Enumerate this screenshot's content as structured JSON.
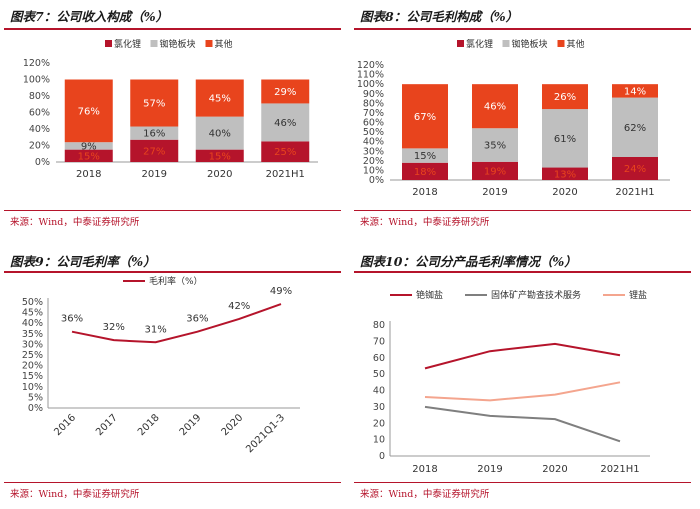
{
  "colors": {
    "accent": "#b5142b",
    "gray": "#bfbfbf",
    "orange": "#e8441d",
    "darkgray": "#7f7f7f",
    "salmon": "#f4a58e"
  },
  "chart_data": [
    {
      "type": "bar",
      "stacked": true,
      "title": "图表7：公司收入构成（%）",
      "categories": [
        "2018",
        "2019",
        "2020",
        "2021H1"
      ],
      "series": [
        {
          "name": "氯化锂",
          "values": [
            15,
            27,
            15,
            25
          ],
          "labels": [
            "15%",
            "27%",
            "15%",
            "25%"
          ]
        },
        {
          "name": "铷铯板块",
          "values": [
            9,
            16,
            40,
            46
          ],
          "labels": [
            "9%",
            "16%",
            "40%",
            "46%"
          ]
        },
        {
          "name": "其他",
          "values": [
            76,
            57,
            45,
            29
          ],
          "labels": [
            "76%",
            "57%",
            "45%",
            "29%"
          ]
        }
      ],
      "yticks": [
        "0%",
        "20%",
        "40%",
        "60%",
        "80%",
        "100%",
        "120%"
      ],
      "ylim": [
        0,
        120
      ],
      "source": "来源：Wind，中泰证券研究所"
    },
    {
      "type": "bar",
      "stacked": true,
      "title": "图表8：公司毛利构成（%）",
      "categories": [
        "2018",
        "2019",
        "2020",
        "2021H1"
      ],
      "series": [
        {
          "name": "氯化锂",
          "values": [
            18,
            19,
            13,
            24
          ],
          "labels": [
            "18%",
            "19%",
            "13%",
            "24%"
          ]
        },
        {
          "name": "铷铯板块",
          "values": [
            15,
            35,
            61,
            62
          ],
          "labels": [
            "15%",
            "35%",
            "61%",
            "62%"
          ]
        },
        {
          "name": "其他",
          "values": [
            67,
            46,
            26,
            14
          ],
          "labels": [
            "67%",
            "46%",
            "26%",
            "14%"
          ]
        }
      ],
      "yticks": [
        "0%",
        "10%",
        "20%",
        "30%",
        "40%",
        "50%",
        "60%",
        "70%",
        "80%",
        "90%",
        "100%",
        "110%",
        "120%"
      ],
      "ylim": [
        0,
        120
      ],
      "source": "来源：Wind，中泰证券研究所"
    },
    {
      "type": "line",
      "title": "图表9：公司毛利率（%）",
      "categories": [
        "2016",
        "2017",
        "2018",
        "2019",
        "2020",
        "2021Q1-3"
      ],
      "series": [
        {
          "name": "毛利率（%）",
          "values": [
            36,
            32,
            31,
            36,
            42,
            49
          ],
          "labels": [
            "36%",
            "32%",
            "31%",
            "36%",
            "42%",
            "49%"
          ]
        }
      ],
      "yticks": [
        "0%",
        "5%",
        "10%",
        "15%",
        "20%",
        "25%",
        "30%",
        "35%",
        "40%",
        "45%",
        "50%"
      ],
      "ylim": [
        0,
        50
      ],
      "source": "来源：Wind，中泰证券研究所"
    },
    {
      "type": "line",
      "title": "图表10：公司分产品毛利率情况（%）",
      "categories": [
        "2018",
        "2019",
        "2020",
        "2021H1"
      ],
      "series": [
        {
          "name": "铯铷盐",
          "values": [
            53.5,
            64,
            68.5,
            61.5
          ]
        },
        {
          "name": "固体矿产勘查技术服务",
          "values": [
            30,
            24.5,
            22.5,
            9
          ]
        },
        {
          "name": "锂盐",
          "values": [
            36,
            34,
            37.5,
            45
          ]
        }
      ],
      "yticks": [
        "0",
        "10",
        "20",
        "30",
        "40",
        "50",
        "60",
        "70",
        "80"
      ],
      "ylim": [
        0,
        80
      ],
      "source": "来源：Wind，中泰证券研究所"
    }
  ]
}
